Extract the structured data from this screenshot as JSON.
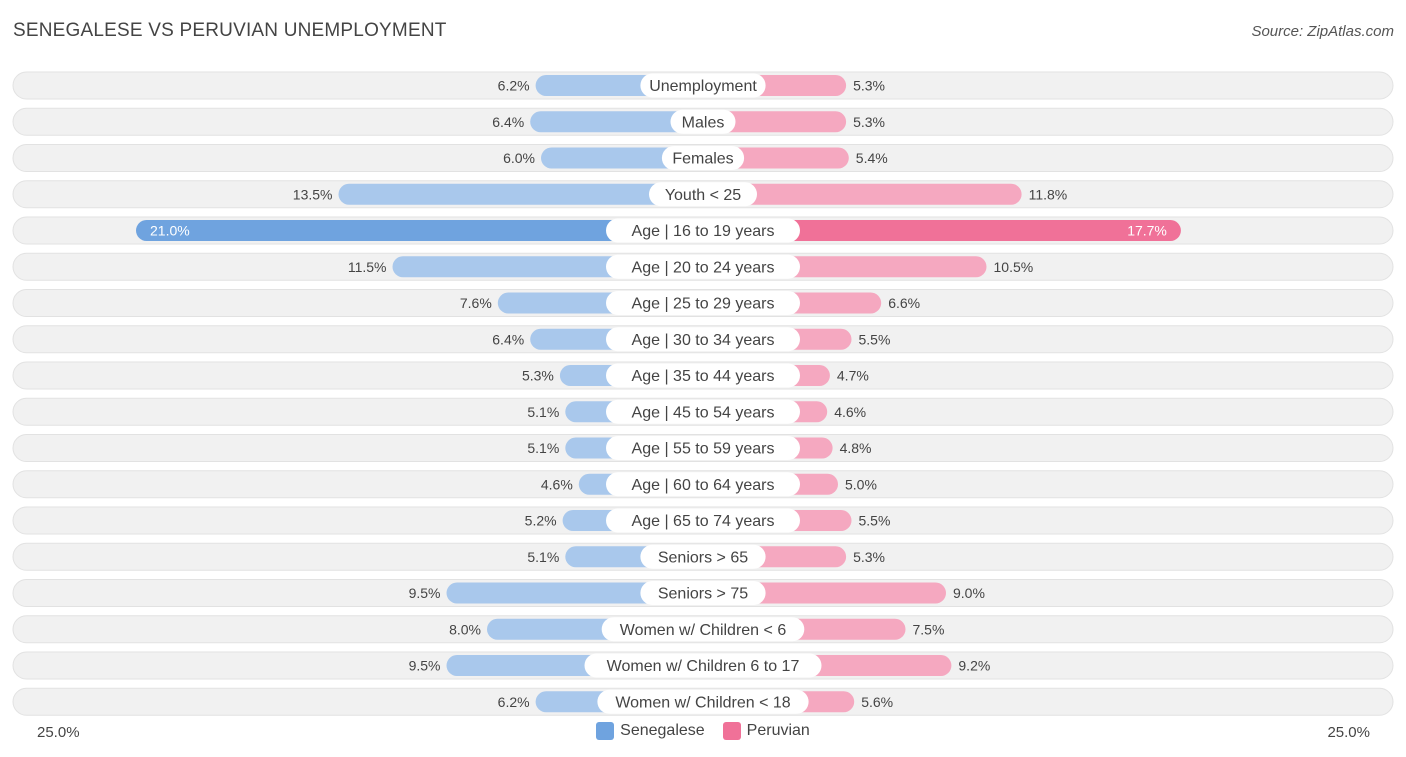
{
  "title": "SENEGALESE VS PERUVIAN UNEMPLOYMENT",
  "source": "Source: ZipAtlas.com",
  "colors": {
    "senegalese": "#6fa3df",
    "senegalese_light": "#a9c8ec",
    "peruvian": "#f07198",
    "peruvian_light": "#f5a8c0",
    "row_bg": "#f1f1f1"
  },
  "legend": {
    "senegalese_label": "Senegalese",
    "peruvian_label": "Peruvian"
  },
  "axis": {
    "left_label": "25.0%",
    "right_label": "25.0%"
  },
  "chart_data": {
    "type": "bar",
    "orientation": "horizontal-diverging",
    "title": "SENEGALESE VS PERUVIAN UNEMPLOYMENT",
    "xlim": [
      0,
      25
    ],
    "categories": [
      "Unemployment",
      "Males",
      "Females",
      "Youth < 25",
      "Age | 16 to 19 years",
      "Age | 20 to 24 years",
      "Age | 25 to 29 years",
      "Age | 30 to 34 years",
      "Age | 35 to 44 years",
      "Age | 45 to 54 years",
      "Age | 55 to 59 years",
      "Age | 60 to 64 years",
      "Age | 65 to 74 years",
      "Seniors > 65",
      "Seniors > 75",
      "Women w/ Children < 6",
      "Women w/ Children 6 to 17",
      "Women w/ Children < 18"
    ],
    "series": [
      {
        "name": "Senegalese",
        "values": [
          6.2,
          6.4,
          6.0,
          13.5,
          21.0,
          11.5,
          7.6,
          6.4,
          5.3,
          5.1,
          5.1,
          4.6,
          5.2,
          5.1,
          9.5,
          8.0,
          9.5,
          6.2
        ],
        "labels": [
          "6.2%",
          "6.4%",
          "6.0%",
          "13.5%",
          "21.0%",
          "11.5%",
          "7.6%",
          "6.4%",
          "5.3%",
          "5.1%",
          "5.1%",
          "4.6%",
          "5.2%",
          "5.1%",
          "9.5%",
          "8.0%",
          "9.5%",
          "6.2%"
        ]
      },
      {
        "name": "Peruvian",
        "values": [
          5.3,
          5.3,
          5.4,
          11.8,
          17.7,
          10.5,
          6.6,
          5.5,
          4.7,
          4.6,
          4.8,
          5.0,
          5.5,
          5.3,
          9.0,
          7.5,
          9.2,
          5.6
        ],
        "labels": [
          "5.3%",
          "5.3%",
          "5.4%",
          "11.8%",
          "17.7%",
          "10.5%",
          "6.6%",
          "5.5%",
          "4.7%",
          "4.6%",
          "4.8%",
          "5.0%",
          "5.5%",
          "5.3%",
          "9.0%",
          "7.5%",
          "9.2%",
          "5.6%"
        ]
      }
    ],
    "highlight_index": 4
  }
}
